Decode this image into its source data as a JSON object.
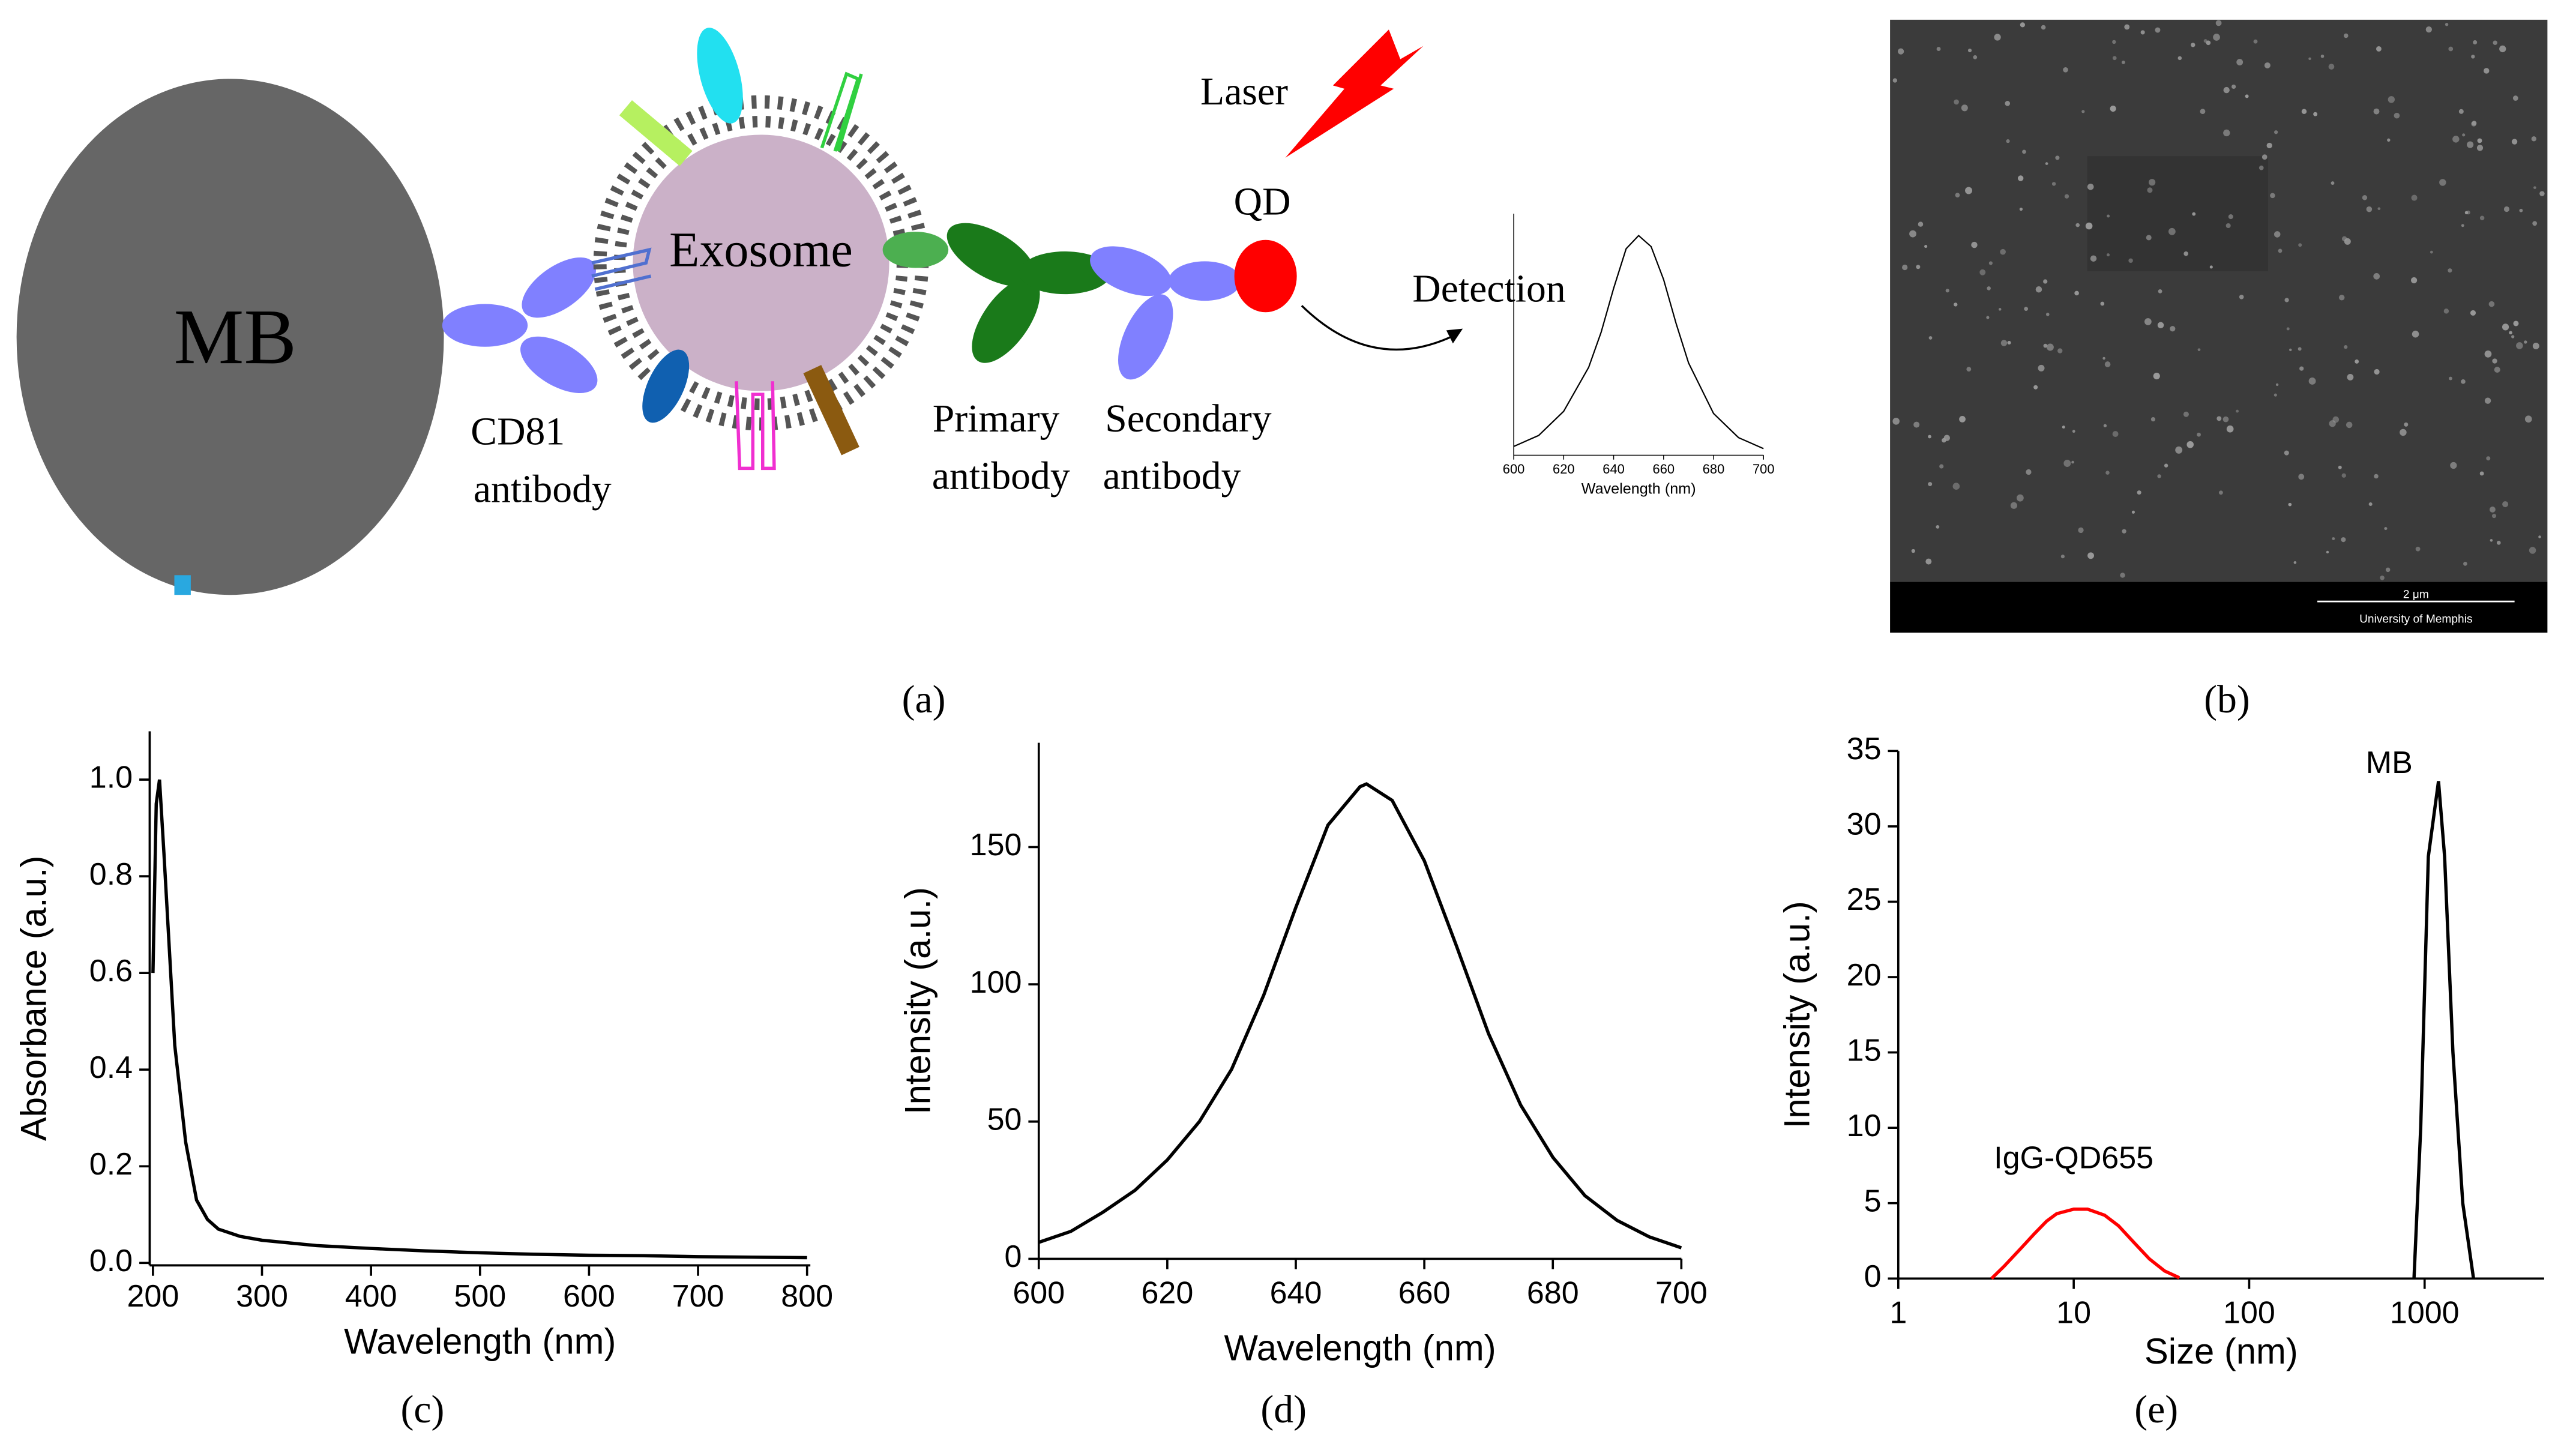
{
  "panel_labels": [
    "(a)",
    "(b)",
    "(c)",
    "(d)",
    "(e)"
  ],
  "diagram": {
    "mb": "MB",
    "exosome": "Exosome",
    "cd81": [
      "CD81",
      "antibody"
    ],
    "primary": [
      "Primary",
      "antibody"
    ],
    "secondary": [
      "Secondary",
      "antibody"
    ],
    "qd": "QD",
    "laser": "Laser",
    "detection": "Detection"
  },
  "sem": {
    "scale_bar": "2 μm",
    "institution": "University of Memphis"
  },
  "chart_data": [
    {
      "type": "line",
      "x_label": "Wavelength (nm)",
      "xlim": [
        600,
        700
      ],
      "xticks": [
        600,
        620,
        640,
        660,
        680,
        700
      ],
      "ylim": [
        0,
        1.1
      ],
      "series": [
        {
          "color": "#000000",
          "x": [
            600,
            610,
            620,
            630,
            635,
            640,
            645,
            650,
            655,
            660,
            665,
            670,
            680,
            690,
            700
          ],
          "values": [
            0.04,
            0.09,
            0.2,
            0.4,
            0.56,
            0.76,
            0.94,
            1.0,
            0.95,
            0.8,
            0.6,
            0.42,
            0.19,
            0.08,
            0.03
          ]
        }
      ]
    },
    {
      "type": "line",
      "x_label": "Wavelength (nm)",
      "y_label": "Absorbance (a.u.)",
      "xlim": [
        197,
        803
      ],
      "xticks": [
        200,
        300,
        400,
        500,
        600,
        700,
        800
      ],
      "ylim": [
        -0.005,
        1.1
      ],
      "yticks": [
        {
          "value": 0,
          "label": "0.0"
        },
        0.2,
        0.4,
        0.6,
        0.8,
        {
          "value": 1,
          "label": "1.0"
        }
      ],
      "series": [
        {
          "color": "#000000",
          "x": [
            200,
            203,
            206,
            210,
            215,
            220,
            230,
            240,
            250,
            260,
            280,
            300,
            350,
            400,
            450,
            500,
            550,
            600,
            650,
            700,
            750,
            800
          ],
          "values": [
            0.6,
            0.95,
            1.0,
            0.85,
            0.65,
            0.45,
            0.25,
            0.13,
            0.09,
            0.07,
            0.055,
            0.047,
            0.036,
            0.03,
            0.025,
            0.021,
            0.018,
            0.016,
            0.015,
            0.013,
            0.012,
            0.011
          ]
        }
      ]
    },
    {
      "type": "line",
      "x_label": "Wavelength (nm)",
      "y_label": "Intensity (a.u.)",
      "xlim": [
        600,
        700
      ],
      "xticks": [
        600,
        620,
        640,
        660,
        680,
        700
      ],
      "ylim": [
        0,
        188
      ],
      "yticks": [
        0,
        50,
        100,
        150
      ],
      "series": [
        {
          "color": "#000000",
          "x": [
            600,
            605,
            610,
            615,
            620,
            625,
            630,
            635,
            640,
            645,
            650,
            651,
            655,
            660,
            665,
            670,
            675,
            680,
            685,
            690,
            695,
            700
          ],
          "values": [
            6,
            10,
            17,
            25,
            36,
            50,
            69,
            96,
            128,
            158,
            172,
            173,
            167,
            145,
            114,
            82,
            56,
            37,
            23,
            14,
            8,
            4
          ]
        }
      ]
    },
    {
      "type": "line",
      "x_label": "Size (nm)",
      "y_label": "Intensity (a.u.)",
      "xscale": "log",
      "xlim": [
        1,
        4800
      ],
      "xticks": [
        1,
        10,
        100,
        1000
      ],
      "ylim": [
        0,
        35
      ],
      "yticks": [
        0,
        5,
        10,
        15,
        20,
        25,
        30,
        35
      ],
      "series": [
        {
          "name": "IgG-QD655",
          "color": "#ff0000",
          "x": [
            3.4,
            4,
            5,
            6,
            7,
            8,
            10,
            12,
            15,
            18,
            22,
            27,
            33,
            40
          ],
          "values": [
            0,
            0.8,
            2,
            3,
            3.8,
            4.3,
            4.6,
            4.6,
            4.2,
            3.5,
            2.4,
            1.3,
            0.5,
            0.05
          ]
        },
        {
          "name": "MB",
          "color": "#000000",
          "x": [
            870,
            950,
            1050,
            1200,
            1300,
            1450,
            1650,
            1900
          ],
          "values": [
            0,
            10,
            28,
            33,
            28,
            15,
            5,
            0
          ]
        }
      ]
    }
  ]
}
